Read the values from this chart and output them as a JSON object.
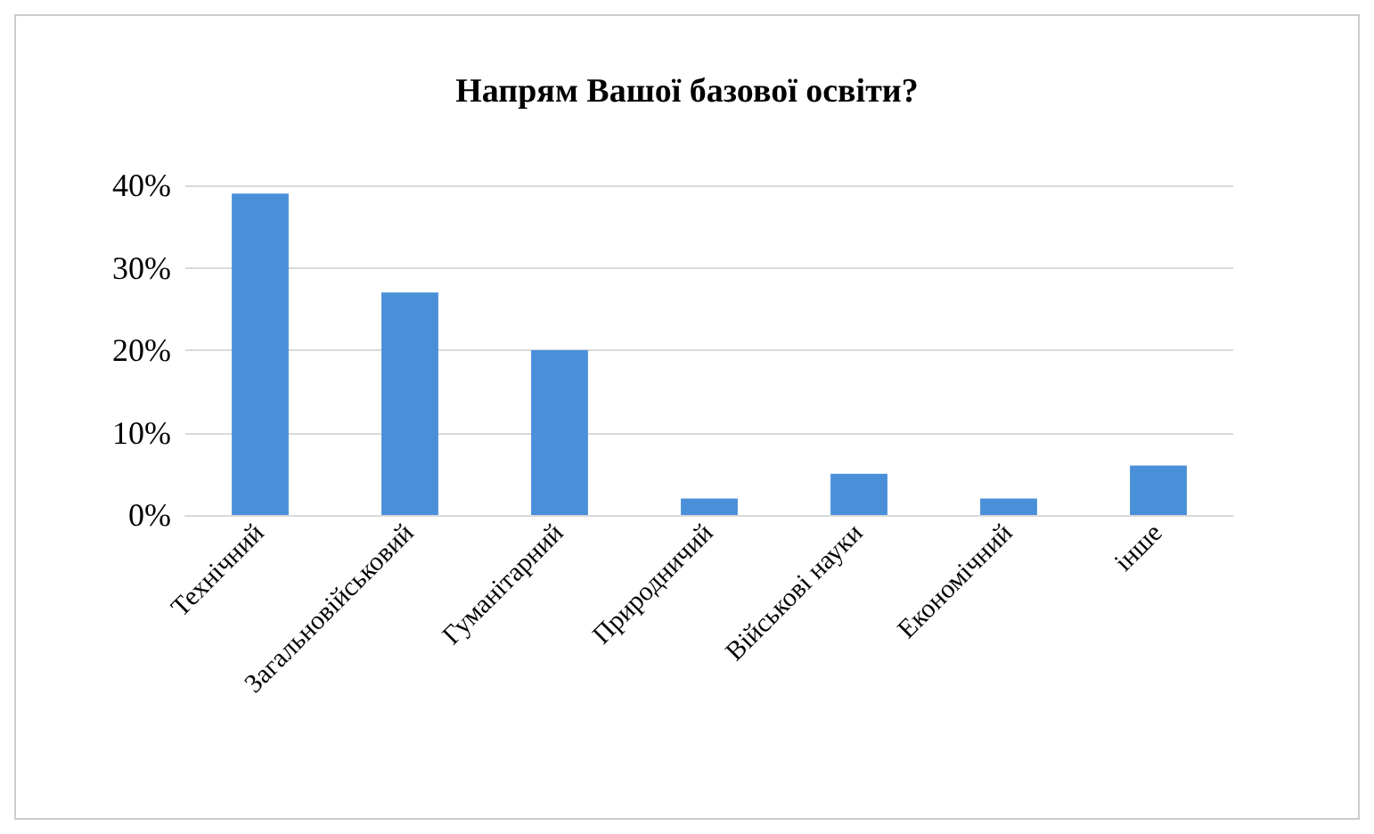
{
  "chart_data": {
    "type": "bar",
    "title": "Напрям Вашої базової освіти?",
    "categories": [
      "Технічний",
      "Загальновійськовий",
      "Гуманітарний",
      "Природничий",
      "Військові науки",
      "Економічний",
      "інше"
    ],
    "values": [
      39,
      27,
      20,
      2,
      5,
      2,
      6
    ],
    "color": "#4a90d9",
    "ylim": [
      0,
      40
    ],
    "yticks": [
      {
        "value": 0,
        "label": "0%"
      },
      {
        "value": 10,
        "label": "10%"
      },
      {
        "value": 20,
        "label": "20%"
      },
      {
        "value": 30,
        "label": "30%"
      },
      {
        "value": 40,
        "label": "40%"
      }
    ],
    "grid": "y"
  }
}
